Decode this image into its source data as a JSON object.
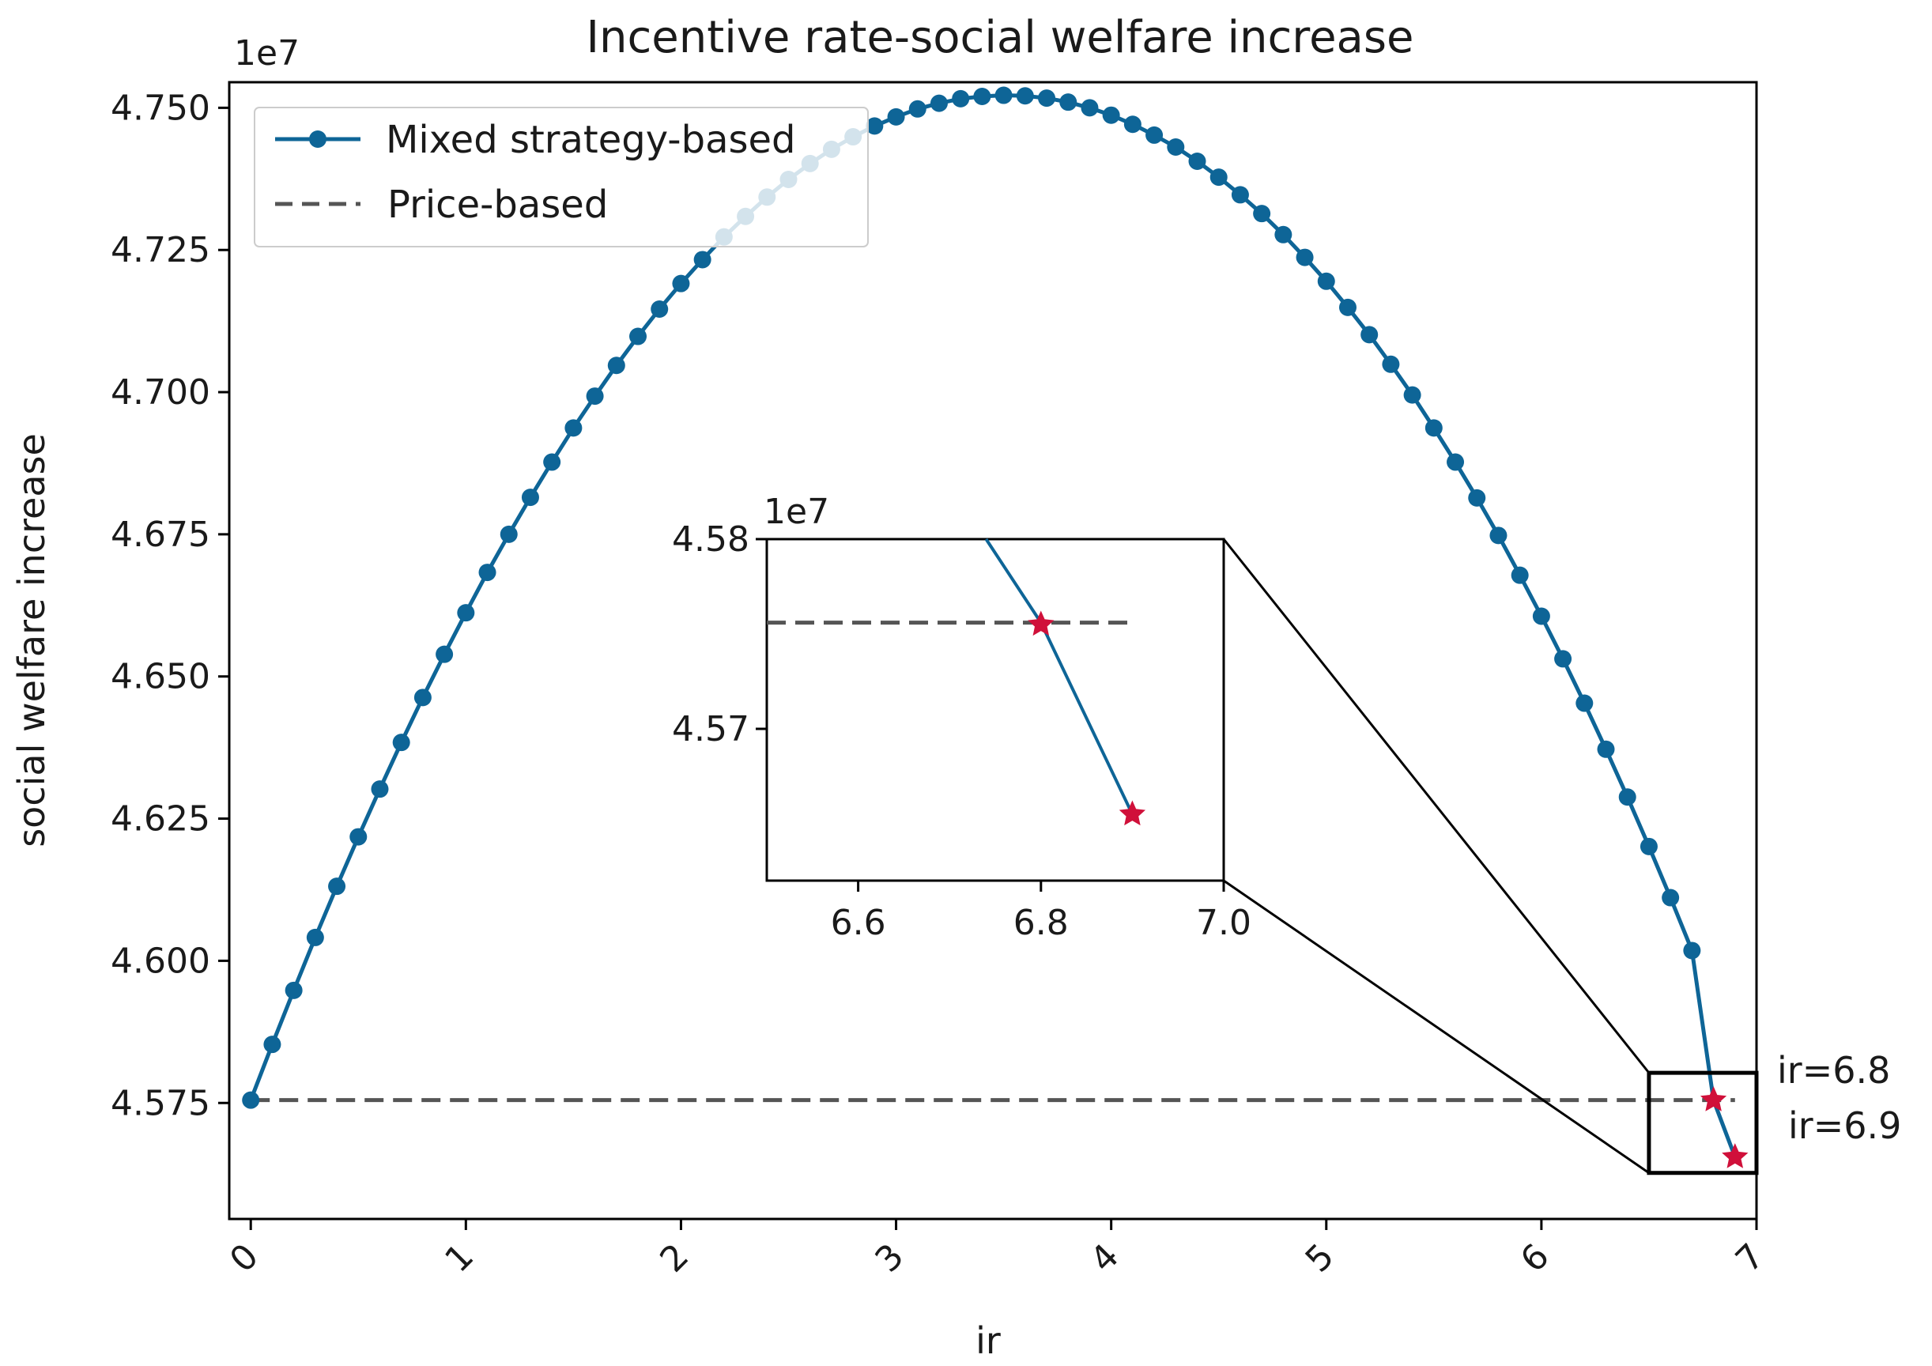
{
  "chart_data": {
    "type": "line",
    "title": "Incentive rate-social welfare increase",
    "xlabel": "ir",
    "ylabel": "social welfare increase",
    "offset_label": "1e7",
    "xlim": [
      -0.1,
      7.0
    ],
    "ylim": [
      4.5546,
      4.7545
    ],
    "xticks": [
      0,
      1,
      2,
      3,
      4,
      5,
      6,
      7
    ],
    "xtick_labels": [
      "0",
      "1",
      "2",
      "3",
      "4",
      "5",
      "6",
      "7"
    ],
    "yticks": [
      4.575,
      4.6,
      4.625,
      4.65,
      4.675,
      4.7,
      4.725,
      4.75
    ],
    "ytick_labels": [
      "4.575",
      "4.600",
      "4.625",
      "4.650",
      "4.675",
      "4.700",
      "4.725",
      "4.750"
    ],
    "grid": false,
    "legend": {
      "location": "upper-left",
      "entries": [
        "Mixed strategy-based",
        "Price-based"
      ]
    },
    "series": [
      {
        "name": "Mixed strategy-based",
        "color": "#0e6597",
        "marker": "circle",
        "x": [
          0.0,
          0.1,
          0.2,
          0.3,
          0.4,
          0.5,
          0.6,
          0.7,
          0.8,
          0.9,
          1.0,
          1.1,
          1.2,
          1.3,
          1.4,
          1.5,
          1.6,
          1.7,
          1.8,
          1.9,
          2.0,
          2.1,
          2.2,
          2.3,
          2.4,
          2.5,
          2.6,
          2.7,
          2.8,
          2.9,
          3.0,
          3.1,
          3.2,
          3.3,
          3.4,
          3.5,
          3.6,
          3.7,
          3.8,
          3.9,
          4.0,
          4.1,
          4.2,
          4.3,
          4.4,
          4.5,
          4.6,
          4.7,
          4.8,
          4.9,
          5.0,
          5.1,
          5.2,
          5.3,
          5.4,
          5.5,
          5.6,
          5.7,
          5.8,
          5.9,
          6.0,
          6.1,
          6.2,
          6.3,
          6.4,
          6.5,
          6.6,
          6.7,
          6.8,
          6.9
        ],
        "y": [
          4.5755,
          4.5853,
          4.5948,
          4.6041,
          4.6131,
          4.6218,
          4.6302,
          4.6384,
          4.6463,
          4.6539,
          4.6612,
          4.6683,
          4.675,
          4.6815,
          4.6877,
          4.6937,
          4.6993,
          4.7047,
          4.7098,
          4.7146,
          4.7191,
          4.7233,
          4.7273,
          4.7309,
          4.7343,
          4.7374,
          4.7402,
          4.7427,
          4.7449,
          4.7468,
          4.7484,
          4.7498,
          4.7508,
          4.7516,
          4.752,
          4.7522,
          4.7521,
          4.7517,
          4.751,
          4.75,
          4.7487,
          4.7471,
          4.7452,
          4.7431,
          4.7406,
          4.7378,
          4.7347,
          4.7314,
          4.7277,
          4.7237,
          4.7195,
          4.7149,
          4.7101,
          4.7049,
          4.6995,
          4.6937,
          4.6877,
          4.6814,
          4.6748,
          4.6678,
          4.6606,
          4.6531,
          4.6453,
          4.6372,
          4.6288,
          4.6201,
          4.6111,
          4.6018,
          4.5755,
          4.5655
        ]
      },
      {
        "name": "Price-based",
        "color": "#555555",
        "style": "dashed",
        "x": [
          0.0,
          6.9
        ],
        "y": [
          4.5755,
          4.5755
        ]
      }
    ],
    "highlight_points": [
      {
        "x": 6.8,
        "y": 4.5755,
        "label": "ir=6.8",
        "marker": "star",
        "color": "#d0103a"
      },
      {
        "x": 6.9,
        "y": 4.5655,
        "label": "ir=6.9",
        "marker": "star",
        "color": "#d0103a"
      }
    ],
    "zoom_box": {
      "xlim": [
        6.5,
        7.0
      ],
      "ylim": [
        4.5627,
        4.5803
      ]
    },
    "inset": {
      "offset_label": "1e7",
      "xlim": [
        6.5,
        7.0
      ],
      "ylim": [
        4.562,
        4.58
      ],
      "xticks": [
        6.6,
        6.8,
        7.0
      ],
      "xtick_labels": [
        "6.6",
        "6.8",
        "7.0"
      ],
      "yticks": [
        4.57,
        4.58
      ],
      "ytick_labels": [
        "4.57",
        "4.58"
      ],
      "line": {
        "x": [
          6.74,
          6.8,
          6.9
        ],
        "y": [
          4.58,
          4.5756,
          4.5655
        ]
      },
      "price_line": {
        "x": [
          6.5,
          6.9
        ],
        "y": [
          4.5756,
          4.5756
        ]
      }
    }
  }
}
